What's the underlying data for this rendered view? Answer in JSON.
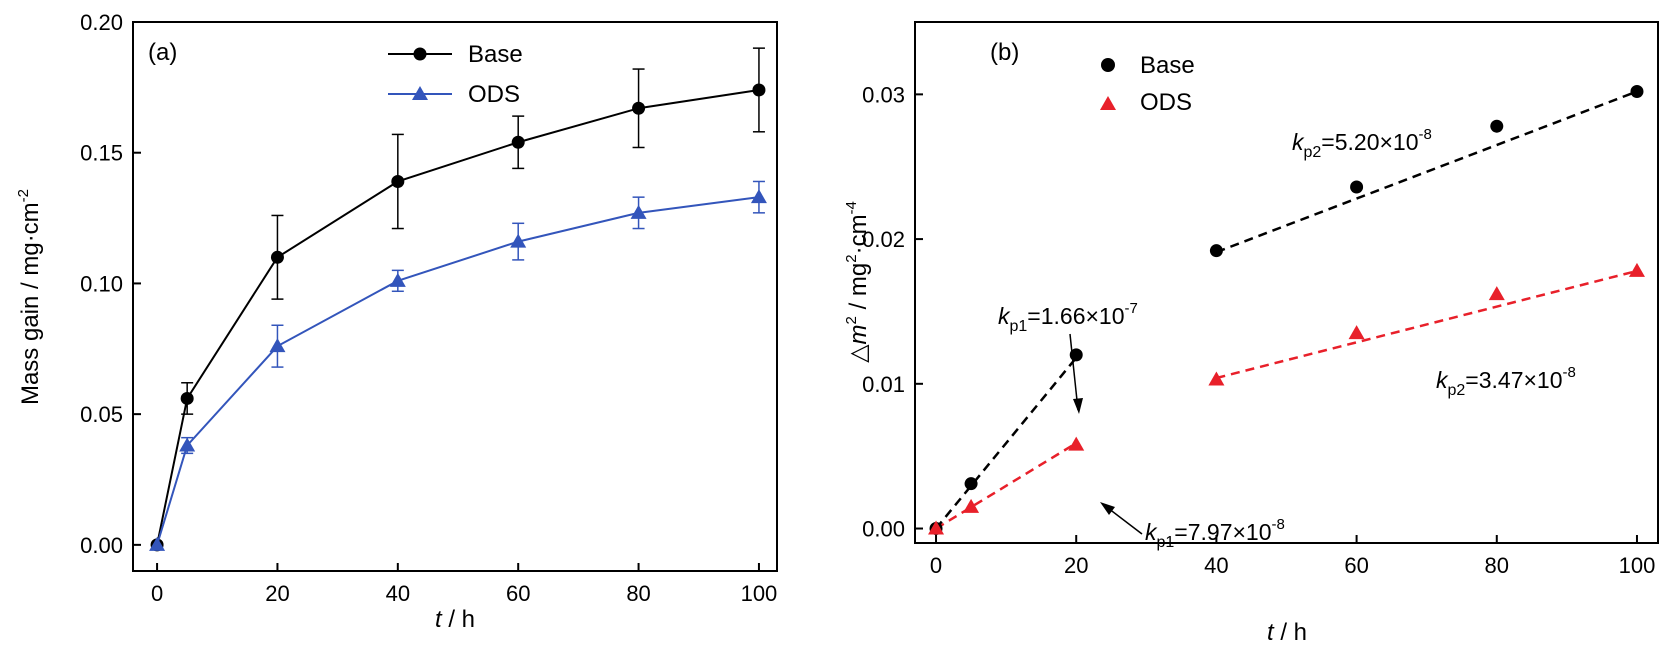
{
  "chart_data": [
    {
      "type": "line",
      "panel_label": "(a)",
      "x_label_italic": "t",
      "x_label_rest": " / h",
      "y_label": "Mass gain / mg·cm",
      "y_label_sup": "-2",
      "xlim": [
        -4,
        103
      ],
      "ylim": [
        -0.01,
        0.2
      ],
      "x_ticks": [
        0,
        20,
        40,
        60,
        80,
        100
      ],
      "x_tick_labels": [
        "0",
        "20",
        "40",
        "60",
        "80",
        "100"
      ],
      "y_ticks": [
        0,
        0.05,
        0.1,
        0.15,
        0.2
      ],
      "y_tick_labels": [
        "0.00",
        "0.05",
        "0.10",
        "0.15",
        "0.20"
      ],
      "legend_position": "top-center",
      "series": [
        {
          "name": "Base",
          "color": "#000000",
          "marker": "circle",
          "x": [
            0,
            5,
            20,
            40,
            60,
            80,
            100
          ],
          "y": [
            0.0,
            0.056,
            0.11,
            0.139,
            0.154,
            0.167,
            0.174
          ],
          "err": [
            0,
            0.006,
            0.016,
            0.018,
            0.01,
            0.015,
            0.016
          ]
        },
        {
          "name": "ODS",
          "color": "#3355bb",
          "marker": "triangle",
          "x": [
            0,
            5,
            20,
            40,
            60,
            80,
            100
          ],
          "y": [
            0.0,
            0.038,
            0.076,
            0.101,
            0.116,
            0.127,
            0.133
          ],
          "err": [
            0,
            0.003,
            0.008,
            0.004,
            0.007,
            0.006,
            0.006
          ]
        }
      ]
    },
    {
      "type": "scatter",
      "panel_label": "(b)",
      "x_label_italic": "t",
      "x_label_rest": " / h",
      "y_label_prefix": "△",
      "y_label_italic": "m",
      "y_label_sup1": "2",
      "y_label_mid": " / mg",
      "y_label_sup2": "2",
      "y_label_mid2": "·cm",
      "y_label_sup3": "-4",
      "xlim": [
        -3,
        103
      ],
      "ylim": [
        -0.001,
        0.035
      ],
      "x_ticks": [
        0,
        20,
        40,
        60,
        80,
        100
      ],
      "x_tick_labels": [
        "0",
        "20",
        "40",
        "60",
        "80",
        "100"
      ],
      "y_ticks": [
        0,
        0.01,
        0.02,
        0.03
      ],
      "y_tick_labels": [
        "0.00",
        "0.01",
        "0.02",
        "0.03"
      ],
      "legend_position": "top-left",
      "series": [
        {
          "name": "Base",
          "color": "#000000",
          "marker": "circle",
          "x": [
            0,
            5,
            20,
            40,
            60,
            80,
            100
          ],
          "y": [
            0.0,
            0.0031,
            0.012,
            0.0192,
            0.0236,
            0.0278,
            0.0302
          ]
        },
        {
          "name": "ODS",
          "color": "#e8202a",
          "marker": "triangle",
          "x": [
            0,
            5,
            20,
            40,
            60,
            80,
            100
          ],
          "y": [
            0.0,
            0.0015,
            0.0058,
            0.0103,
            0.0135,
            0.0162,
            0.0178
          ]
        }
      ],
      "fit_lines": [
        {
          "series": "Base",
          "x": [
            0,
            20
          ],
          "y": [
            0.0,
            0.0118
          ],
          "color": "#000000"
        },
        {
          "series": "Base",
          "x": [
            40,
            100
          ],
          "y": [
            0.0191,
            0.0302
          ],
          "color": "#000000"
        },
        {
          "series": "ODS",
          "x": [
            0,
            20
          ],
          "y": [
            0.0,
            0.0059
          ],
          "color": "#e8202a"
        },
        {
          "series": "ODS",
          "x": [
            40,
            100
          ],
          "y": [
            0.0104,
            0.0178
          ],
          "color": "#e8202a"
        }
      ],
      "annotations": [
        {
          "k": "k",
          "sub": "p1",
          "eq": "=1.66×10",
          "exp": "-7",
          "series": "Base",
          "segment": "first"
        },
        {
          "k": "k",
          "sub": "p2",
          "eq": "=5.20×10",
          "exp": "-8",
          "series": "Base",
          "segment": "second"
        },
        {
          "k": "k",
          "sub": "p1",
          "eq": "=7.97×10",
          "exp": "-8",
          "series": "ODS",
          "segment": "first"
        },
        {
          "k": "k",
          "sub": "p2",
          "eq": "=3.47×10",
          "exp": "-8",
          "series": "ODS",
          "segment": "second"
        }
      ]
    }
  ]
}
